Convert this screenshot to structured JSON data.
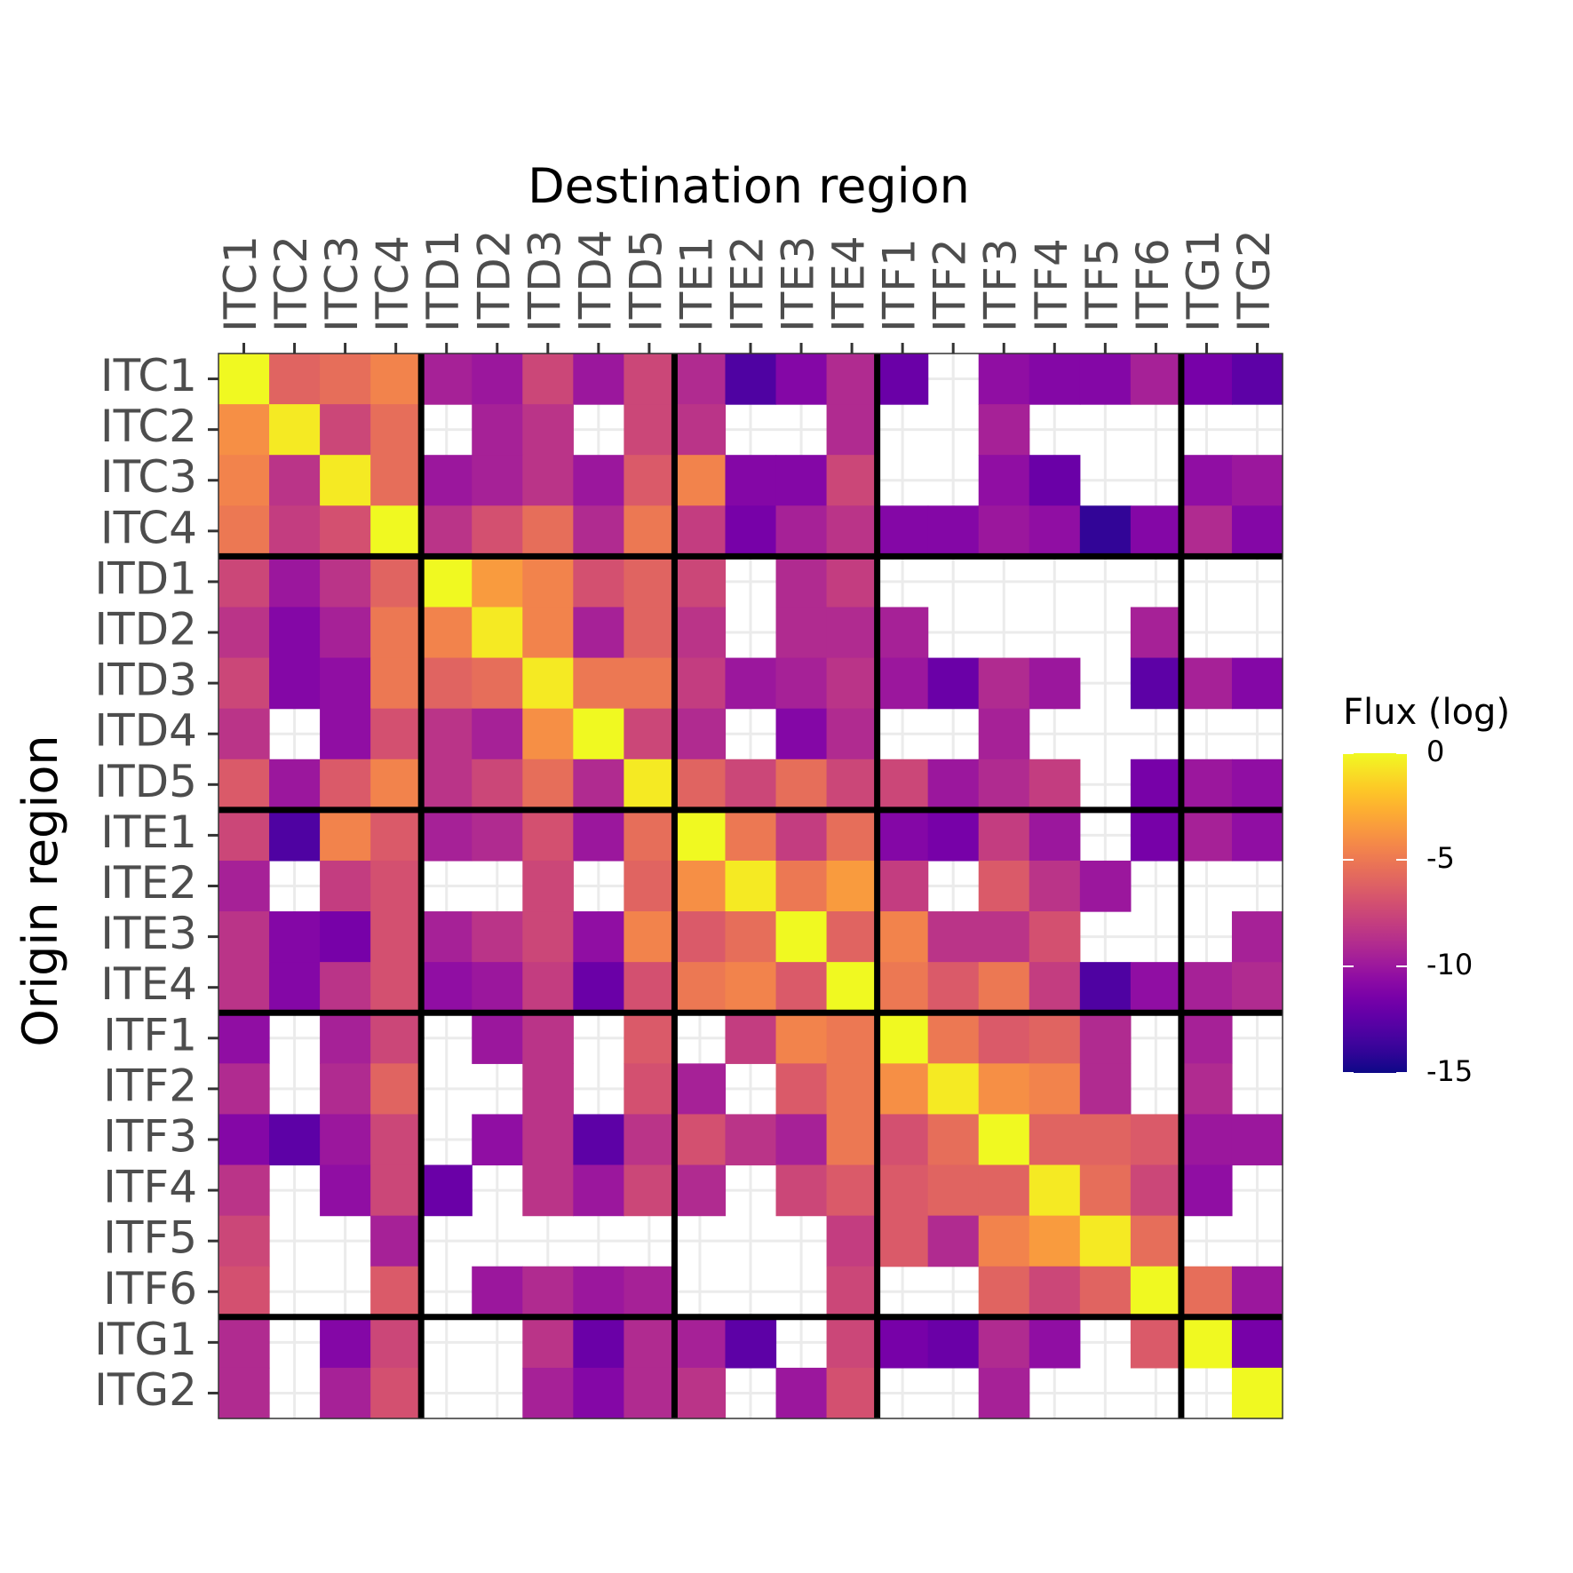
{
  "chart_data": {
    "type": "heatmap",
    "title": "",
    "xlabel": "Destination region",
    "ylabel": "Origin region",
    "x_categories": [
      "ITC1",
      "ITC2",
      "ITC3",
      "ITC4",
      "ITD1",
      "ITD2",
      "ITD3",
      "ITD4",
      "ITD5",
      "ITE1",
      "ITE2",
      "ITE3",
      "ITE4",
      "ITF1",
      "ITF2",
      "ITF3",
      "ITF4",
      "ITF5",
      "ITF6",
      "ITG1",
      "ITG2"
    ],
    "y_categories": [
      "ITC1",
      "ITC2",
      "ITC3",
      "ITC4",
      "ITD1",
      "ITD2",
      "ITD3",
      "ITD4",
      "ITD5",
      "ITE1",
      "ITE2",
      "ITE3",
      "ITE4",
      "ITF1",
      "ITF2",
      "ITF3",
      "ITF4",
      "ITF5",
      "ITF6",
      "ITG1",
      "ITG2"
    ],
    "group_boundaries_after_index": [
      3,
      8,
      12,
      18
    ],
    "values": [
      [
        0,
        -6,
        -5.5,
        -4.5,
        -9.5,
        -10,
        -7.5,
        -10,
        -7.5,
        -9,
        -13,
        -11,
        -9,
        -12,
        null,
        -10.5,
        -11,
        -11,
        -9.5,
        -11.5,
        -12.5
      ],
      [
        -4,
        -0.5,
        -7.5,
        -5.5,
        null,
        -9.5,
        -8.5,
        null,
        -7.5,
        -8.5,
        null,
        null,
        -9,
        null,
        null,
        -9.5,
        null,
        null,
        null,
        null,
        null
      ],
      [
        -4.5,
        -8.5,
        -0.5,
        -5.5,
        -10,
        -9.5,
        -8.5,
        -10,
        -6.5,
        -4.5,
        -11,
        -11,
        -7.5,
        null,
        null,
        -10.5,
        -12,
        null,
        null,
        -10.5,
        -10
      ],
      [
        -5,
        -8,
        -7,
        0,
        -8.5,
        -7,
        -5.5,
        -9,
        -5,
        -8,
        -11.5,
        -9.5,
        -8.5,
        -11,
        -11,
        -10,
        -10.5,
        -14,
        -11,
        -9,
        -11
      ],
      [
        -7.5,
        -10,
        -8.5,
        -6,
        0,
        -3.5,
        -4.5,
        -7,
        -6,
        -7.5,
        null,
        -9,
        -8,
        null,
        null,
        null,
        null,
        null,
        null,
        null,
        null
      ],
      [
        -8.5,
        -11,
        -9.5,
        -5,
        -4.5,
        -0.5,
        -4.5,
        -9.5,
        -6,
        -8.5,
        null,
        -9,
        -9,
        -9.5,
        null,
        null,
        null,
        null,
        -9.5,
        null,
        null
      ],
      [
        -7.5,
        -11,
        -10.5,
        -5,
        -6,
        -5.5,
        -0.5,
        -5,
        -5,
        -8,
        -10,
        -9.5,
        -8.5,
        -10,
        -12,
        -9,
        -10,
        null,
        -12.5,
        -9.5,
        -11
      ],
      [
        -8.5,
        null,
        -10.5,
        -7,
        -8.5,
        -9.5,
        -4,
        0,
        -7.5,
        -9,
        null,
        -11,
        -9,
        null,
        null,
        -9.5,
        null,
        null,
        null,
        null,
        null
      ],
      [
        -6.5,
        -10,
        -6.5,
        -4.5,
        -8.5,
        -7.5,
        -5.5,
        -9,
        -0.5,
        -6,
        -7.5,
        -5.5,
        -7.5,
        -7.5,
        -10,
        -9,
        -8,
        null,
        -11.5,
        -10,
        -10.5
      ],
      [
        -7.5,
        -13,
        -4.5,
        -6.5,
        -9.5,
        -9,
        -7,
        -10,
        -5.5,
        0,
        -5,
        -8,
        -5.5,
        -11,
        -11.5,
        -8,
        -10,
        null,
        -11.5,
        -9.5,
        -10.5
      ],
      [
        -9.5,
        null,
        -8,
        -7,
        null,
        null,
        -7.5,
        null,
        -6,
        -4,
        -0.5,
        -5,
        -3.5,
        -8,
        null,
        -6.5,
        -8.5,
        -10,
        null,
        null,
        null
      ],
      [
        -8.5,
        -11,
        -11.5,
        -7,
        -9.5,
        -8.5,
        -7.5,
        -10.5,
        -4.5,
        -6.5,
        -5.5,
        0,
        -6,
        -4.5,
        -8.5,
        -8.5,
        -7,
        null,
        null,
        null,
        -9.5
      ],
      [
        -8.5,
        -11,
        -8.5,
        -7,
        -10.5,
        -10,
        -8,
        -12,
        -7,
        -5,
        -4.5,
        -6.5,
        0,
        -5,
        -6.5,
        -5,
        -8,
        -13,
        -10.5,
        -9.5,
        -9
      ],
      [
        -10.5,
        null,
        -9.5,
        -7.5,
        null,
        -10,
        -8.5,
        null,
        -6.5,
        null,
        -8,
        -4.5,
        -5,
        0,
        -5,
        -6.5,
        -6,
        -9,
        null,
        -9.5,
        null
      ],
      [
        -9,
        null,
        -9,
        -6,
        null,
        null,
        -8.5,
        null,
        -7,
        -9.5,
        null,
        -6.5,
        -5,
        -4,
        -0.5,
        -4,
        -4.5,
        -9,
        null,
        -9,
        null
      ],
      [
        -11,
        -12.5,
        -10,
        -7.5,
        null,
        -10.5,
        -8.5,
        -12.5,
        -8.5,
        -7,
        -8.5,
        -9.5,
        -5,
        -7,
        -5.5,
        0,
        -6,
        -6,
        -6.5,
        -10,
        -10
      ],
      [
        -8.5,
        null,
        -10.5,
        -7.5,
        -12,
        null,
        -8.5,
        -10,
        -7.5,
        -9,
        null,
        -7.5,
        -6.5,
        -6.5,
        -6,
        -6,
        -0.5,
        -5.5,
        -7.5,
        -10.5,
        null
      ],
      [
        -7.5,
        null,
        null,
        -9.5,
        null,
        null,
        null,
        null,
        null,
        null,
        null,
        null,
        -8,
        -6.5,
        -9,
        -4.5,
        -3.5,
        -0.5,
        -5.5,
        null,
        null
      ],
      [
        -7,
        null,
        null,
        -6.5,
        null,
        -10,
        -9,
        -10,
        -9.5,
        null,
        null,
        null,
        -7.5,
        null,
        null,
        -6,
        -7.5,
        -6,
        0,
        -5.5,
        -10
      ],
      [
        -9,
        null,
        -11,
        -7.5,
        null,
        null,
        -8.5,
        -12,
        -9,
        -9.5,
        -12.5,
        null,
        -7.5,
        -11.5,
        -12,
        -9,
        -10.5,
        null,
        -6.5,
        0,
        -11.5
      ],
      [
        -9,
        null,
        -9.5,
        -7,
        null,
        null,
        -9.5,
        -11,
        -9,
        -8.5,
        null,
        -10,
        -7,
        null,
        null,
        -9.5,
        null,
        null,
        null,
        null,
        0
      ]
    ],
    "color_scale": {
      "name": "plasma",
      "title": "Flux (log)",
      "min": -15,
      "max": 0,
      "ticks": [
        0,
        -5,
        -10,
        -15
      ],
      "tick_labels": [
        "0",
        "-5",
        "-10",
        "-15"
      ],
      "na_color": "#ffffff"
    },
    "grid": true,
    "legend_position": "right"
  }
}
